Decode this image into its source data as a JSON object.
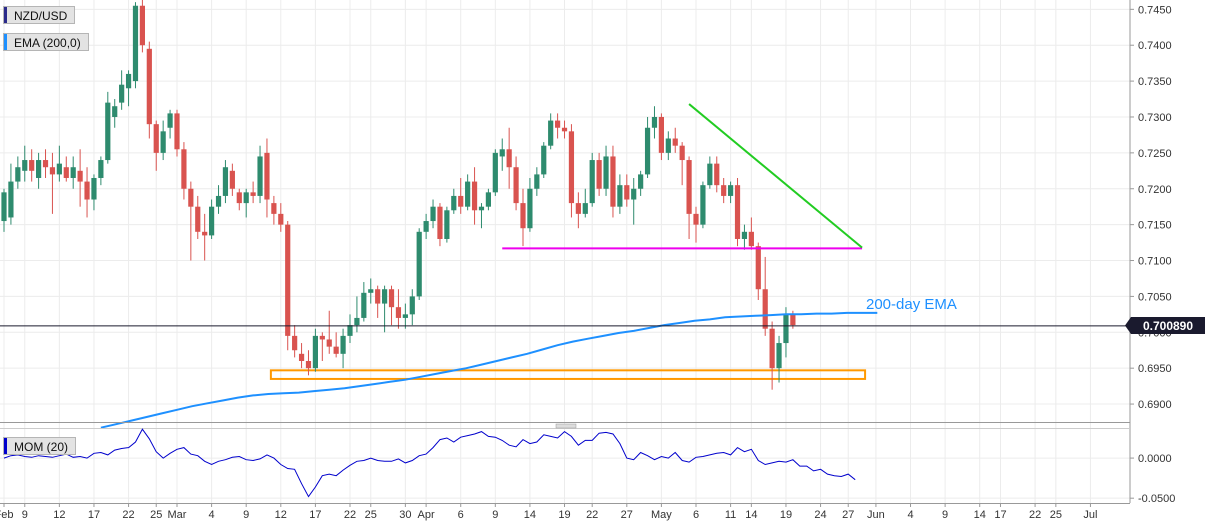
{
  "symbol_label": "NZD/USD",
  "ema_label": "EMA (200,0)",
  "mom_label": "MOM (20)",
  "ema_annotation": "200-day EMA",
  "price_label": "0.700890",
  "colors": {
    "bull": "#2e8b6e",
    "bear": "#d9534f",
    "ema": "#1e90ff",
    "trend": "#22cc22",
    "support": "#ee00ee",
    "zone": "#ff9900",
    "mom": "#0000cc"
  },
  "chart_data": {
    "type": "candlestick",
    "title": "",
    "y_ticks": [
      "0.7450",
      "0.7400",
      "0.7350",
      "0.7300",
      "0.7250",
      "0.7200",
      "0.7150",
      "0.7100",
      "0.7050",
      "0.7000",
      "0.6950",
      "0.6900"
    ],
    "y_tick_values": [
      0.745,
      0.74,
      0.735,
      0.73,
      0.725,
      0.72,
      0.715,
      0.71,
      0.705,
      0.7,
      0.695,
      0.69
    ],
    "ylim": [
      0.6875,
      0.7463
    ],
    "x_ticks": [
      "Feb",
      "9",
      "12",
      "17",
      "22",
      "25",
      "Mar",
      "4",
      "9",
      "12",
      "17",
      "22",
      "25",
      "30",
      "Apr",
      "6",
      "9",
      "14",
      "19",
      "22",
      "27",
      "May",
      "6",
      "11",
      "14",
      "19",
      "24",
      "27",
      "Jun",
      "4",
      "9",
      "14",
      "17",
      "22",
      "25",
      "Jul"
    ],
    "x_tick_index": [
      0,
      3,
      8,
      13,
      18,
      22,
      25,
      30,
      35,
      40,
      45,
      50,
      53,
      58,
      61,
      66,
      71,
      76,
      81,
      85,
      90,
      95,
      100,
      105,
      108,
      113,
      118,
      122,
      126,
      131,
      136,
      141,
      144,
      149,
      152,
      157
    ],
    "candles": [
      [
        0.7155,
        0.72,
        0.714,
        0.7195
      ],
      [
        0.716,
        0.7235,
        0.715,
        0.721
      ],
      [
        0.721,
        0.7245,
        0.72,
        0.723
      ],
      [
        0.7225,
        0.726,
        0.721,
        0.724
      ],
      [
        0.724,
        0.7255,
        0.721,
        0.7225
      ],
      [
        0.7215,
        0.725,
        0.72,
        0.724
      ],
      [
        0.724,
        0.7255,
        0.7215,
        0.723
      ],
      [
        0.723,
        0.725,
        0.7165,
        0.722
      ],
      [
        0.722,
        0.726,
        0.721,
        0.7235
      ],
      [
        0.723,
        0.7245,
        0.721,
        0.7215
      ],
      [
        0.7215,
        0.7245,
        0.72,
        0.723
      ],
      [
        0.7225,
        0.7255,
        0.7175,
        0.721
      ],
      [
        0.721,
        0.723,
        0.716,
        0.7185
      ],
      [
        0.7185,
        0.722,
        0.717,
        0.7215
      ],
      [
        0.7215,
        0.7245,
        0.7205,
        0.724
      ],
      [
        0.724,
        0.7335,
        0.7235,
        0.732
      ],
      [
        0.73,
        0.7325,
        0.7285,
        0.7315
      ],
      [
        0.732,
        0.7365,
        0.731,
        0.7345
      ],
      [
        0.734,
        0.7365,
        0.7315,
        0.736
      ],
      [
        0.735,
        0.746,
        0.734,
        0.7455
      ],
      [
        0.7455,
        0.7465,
        0.739,
        0.74
      ],
      [
        0.7395,
        0.7405,
        0.727,
        0.729
      ],
      [
        0.729,
        0.7295,
        0.7225,
        0.725
      ],
      [
        0.725,
        0.7295,
        0.724,
        0.728
      ],
      [
        0.7285,
        0.731,
        0.727,
        0.7305
      ],
      [
        0.7305,
        0.731,
        0.7245,
        0.7255
      ],
      [
        0.7255,
        0.7265,
        0.7185,
        0.72
      ],
      [
        0.72,
        0.721,
        0.71,
        0.7175
      ],
      [
        0.7175,
        0.719,
        0.713,
        0.714
      ],
      [
        0.714,
        0.7165,
        0.71,
        0.7135
      ],
      [
        0.7135,
        0.7185,
        0.713,
        0.7175
      ],
      [
        0.7175,
        0.7205,
        0.7165,
        0.719
      ],
      [
        0.719,
        0.724,
        0.718,
        0.723
      ],
      [
        0.7225,
        0.7235,
        0.719,
        0.72
      ],
      [
        0.7195,
        0.72,
        0.717,
        0.718
      ],
      [
        0.718,
        0.72,
        0.716,
        0.7195
      ],
      [
        0.7195,
        0.721,
        0.718,
        0.719
      ],
      [
        0.719,
        0.726,
        0.718,
        0.7245
      ],
      [
        0.725,
        0.727,
        0.716,
        0.7185
      ],
      [
        0.718,
        0.719,
        0.715,
        0.7165
      ],
      [
        0.7165,
        0.718,
        0.714,
        0.715
      ],
      [
        0.715,
        0.7155,
        0.6975,
        0.6995
      ],
      [
        0.6995,
        0.701,
        0.6965,
        0.6975
      ],
      [
        0.697,
        0.6985,
        0.695,
        0.696
      ],
      [
        0.696,
        0.6975,
        0.694,
        0.695
      ],
      [
        0.695,
        0.7005,
        0.6945,
        0.6995
      ],
      [
        0.6995,
        0.7,
        0.696,
        0.699
      ],
      [
        0.699,
        0.703,
        0.697,
        0.698
      ],
      [
        0.698,
        0.7,
        0.6965,
        0.697
      ],
      [
        0.697,
        0.7005,
        0.695,
        0.6995
      ],
      [
        0.6995,
        0.7025,
        0.6985,
        0.701
      ],
      [
        0.701,
        0.705,
        0.7,
        0.702
      ],
      [
        0.702,
        0.707,
        0.7015,
        0.7055
      ],
      [
        0.7055,
        0.7075,
        0.704,
        0.706
      ],
      [
        0.706,
        0.7065,
        0.702,
        0.704
      ],
      [
        0.704,
        0.7065,
        0.7,
        0.706
      ],
      [
        0.706,
        0.7065,
        0.701,
        0.7035
      ],
      [
        0.7035,
        0.706,
        0.7005,
        0.702
      ],
      [
        0.702,
        0.704,
        0.7005,
        0.7025
      ],
      [
        0.7025,
        0.706,
        0.701,
        0.705
      ],
      [
        0.705,
        0.7145,
        0.7045,
        0.714
      ],
      [
        0.714,
        0.7165,
        0.713,
        0.7155
      ],
      [
        0.7155,
        0.7185,
        0.7145,
        0.7175
      ],
      [
        0.7175,
        0.718,
        0.712,
        0.713
      ],
      [
        0.713,
        0.7175,
        0.7125,
        0.717
      ],
      [
        0.717,
        0.72,
        0.7165,
        0.719
      ],
      [
        0.719,
        0.7215,
        0.7165,
        0.7175
      ],
      [
        0.7175,
        0.722,
        0.717,
        0.721
      ],
      [
        0.721,
        0.723,
        0.715,
        0.717
      ],
      [
        0.717,
        0.718,
        0.7145,
        0.7175
      ],
      [
        0.7175,
        0.72,
        0.717,
        0.7195
      ],
      [
        0.7195,
        0.7255,
        0.719,
        0.725
      ],
      [
        0.7245,
        0.727,
        0.7225,
        0.7255
      ],
      [
        0.7255,
        0.7285,
        0.72,
        0.723
      ],
      [
        0.723,
        0.7245,
        0.717,
        0.718
      ],
      [
        0.718,
        0.72,
        0.712,
        0.7145
      ],
      [
        0.7145,
        0.7215,
        0.714,
        0.72
      ],
      [
        0.72,
        0.723,
        0.719,
        0.722
      ],
      [
        0.722,
        0.7265,
        0.7215,
        0.726
      ],
      [
        0.726,
        0.7305,
        0.7255,
        0.7295
      ],
      [
        0.7295,
        0.7305,
        0.727,
        0.7285
      ],
      [
        0.7285,
        0.7295,
        0.727,
        0.728
      ],
      [
        0.728,
        0.729,
        0.716,
        0.718
      ],
      [
        0.718,
        0.7195,
        0.7145,
        0.7165
      ],
      [
        0.7165,
        0.72,
        0.716,
        0.718
      ],
      [
        0.718,
        0.725,
        0.7175,
        0.724
      ],
      [
        0.724,
        0.725,
        0.719,
        0.72
      ],
      [
        0.72,
        0.726,
        0.719,
        0.7245
      ],
      [
        0.7245,
        0.726,
        0.716,
        0.7175
      ],
      [
        0.7175,
        0.722,
        0.7165,
        0.7205
      ],
      [
        0.7205,
        0.722,
        0.7175,
        0.7185
      ],
      [
        0.7185,
        0.7215,
        0.715,
        0.72
      ],
      [
        0.72,
        0.7225,
        0.719,
        0.722
      ],
      [
        0.722,
        0.73,
        0.7215,
        0.7285
      ],
      [
        0.7285,
        0.7315,
        0.727,
        0.73
      ],
      [
        0.73,
        0.7305,
        0.724,
        0.725
      ],
      [
        0.725,
        0.728,
        0.724,
        0.727
      ],
      [
        0.727,
        0.7285,
        0.725,
        0.726
      ],
      [
        0.726,
        0.7265,
        0.7205,
        0.724
      ],
      [
        0.724,
        0.7245,
        0.713,
        0.7165
      ],
      [
        0.7165,
        0.7175,
        0.7125,
        0.715
      ],
      [
        0.715,
        0.721,
        0.7145,
        0.7205
      ],
      [
        0.7205,
        0.7245,
        0.72,
        0.7235
      ],
      [
        0.7235,
        0.7245,
        0.7195,
        0.7205
      ],
      [
        0.7205,
        0.7215,
        0.718,
        0.719
      ],
      [
        0.719,
        0.721,
        0.718,
        0.7205
      ],
      [
        0.7205,
        0.7215,
        0.712,
        0.713
      ],
      [
        0.713,
        0.715,
        0.7115,
        0.714
      ],
      [
        0.714,
        0.716,
        0.7115,
        0.712
      ],
      [
        0.712,
        0.7125,
        0.7045,
        0.706
      ],
      [
        0.706,
        0.7105,
        0.6995,
        0.7005
      ],
      [
        0.7005,
        0.7015,
        0.692,
        0.695
      ],
      [
        0.695,
        0.6995,
        0.693,
        0.6985
      ],
      [
        0.6985,
        0.7035,
        0.6965,
        0.7025
      ],
      [
        0.7025,
        0.703,
        0.7005,
        0.701
      ]
    ],
    "ema": [
      0.6867,
      0.6872,
      0.6877,
      0.6882,
      0.6887,
      0.6892,
      0.6897,
      0.6901,
      0.6905,
      0.6909,
      0.6912,
      0.6914,
      0.6915,
      0.6916,
      0.6918,
      0.692,
      0.6922,
      0.6925,
      0.6928,
      0.6931,
      0.6934,
      0.6938,
      0.6942,
      0.6946,
      0.695,
      0.6955,
      0.696,
      0.6965,
      0.697,
      0.6976,
      0.6982,
      0.6987,
      0.6991,
      0.6995,
      0.6999,
      0.7002,
      0.7006,
      0.701,
      0.7013,
      0.7016,
      0.7018,
      0.7021,
      0.7022,
      0.7023,
      0.7024,
      0.7025,
      0.7025,
      0.7026,
      0.7026,
      0.7027,
      0.7027,
      0.7027
    ],
    "ema_start_index": 14,
    "ema_step": 2.2,
    "support_line": {
      "y": 0.7117,
      "from_index": 72,
      "to_index": 124
    },
    "trendline": {
      "from": [
        0.7318,
        99
      ],
      "to": [
        0.7118,
        124
      ]
    },
    "zone": {
      "ymin": 0.6935,
      "ymax": 0.6947,
      "from_index": 39,
      "to_index": 124
    },
    "current_price": 0.70089,
    "momentum": {
      "ylim": [
        -0.056,
        0.035
      ],
      "y_ticks": [
        "0.0000",
        "-0.0500"
      ],
      "y_tick_values": [
        0.0,
        -0.05
      ],
      "values": [
        0.0,
        0.003,
        0.004,
        0.002,
        0.001,
        0.003,
        0.002,
        0.001,
        0.003,
        0.005,
        0.001,
        0.002,
        0.0,
        0.006,
        0.007,
        0.004,
        0.01,
        0.012,
        0.013,
        0.02,
        0.036,
        0.024,
        0.008,
        0.0,
        0.006,
        0.011,
        0.013,
        0.005,
        0.003,
        -0.004,
        -0.008,
        -0.004,
        -0.002,
        0.001,
        0.002,
        -0.002,
        -0.003,
        -0.001,
        0.004,
        0.0,
        -0.008,
        -0.013,
        -0.014,
        -0.032,
        -0.048,
        -0.036,
        -0.022,
        -0.02,
        -0.022,
        -0.015,
        -0.009,
        -0.004,
        -0.003,
        0.0,
        -0.003,
        -0.004,
        -0.004,
        -0.001,
        -0.006,
        -0.003,
        0.003,
        0.005,
        0.013,
        0.023,
        0.025,
        0.02,
        0.026,
        0.028,
        0.03,
        0.033,
        0.027,
        0.026,
        0.022,
        0.016,
        0.014,
        0.023,
        0.018,
        0.02,
        0.029,
        0.027,
        0.025,
        0.033,
        0.027,
        0.016,
        0.022,
        0.022,
        0.031,
        0.032,
        0.03,
        0.018,
        0.0,
        -0.002,
        0.007,
        0.003,
        -0.002,
        0.002,
        0.0,
        0.007,
        -0.003,
        -0.005,
        0.001,
        0.002,
        0.004,
        0.006,
        0.007,
        0.004,
        0.013,
        0.008,
        0.011,
        -0.003,
        -0.008,
        -0.006,
        -0.004,
        -0.005,
        -0.002,
        -0.01,
        -0.01,
        -0.016,
        -0.014,
        -0.02,
        -0.022,
        -0.023,
        -0.02,
        -0.027
      ]
    }
  }
}
